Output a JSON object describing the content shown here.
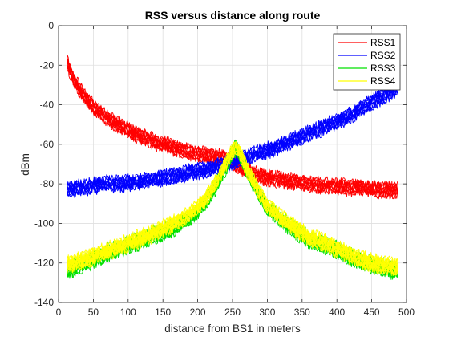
{
  "chart_data": {
    "type": "line",
    "title": "RSS versus distance along route",
    "xlabel": "distance from BS1 in meters",
    "ylabel": "dBm",
    "xlim": [
      0,
      500
    ],
    "ylim": [
      -140,
      0
    ],
    "xticks": [
      0,
      50,
      100,
      150,
      200,
      250,
      300,
      350,
      400,
      450,
      500
    ],
    "yticks": [
      0,
      -20,
      -40,
      -60,
      -80,
      -100,
      -120,
      -140
    ],
    "grid": true,
    "legend_position": "top-right",
    "series": [
      {
        "name": "RSS1",
        "color": "#ff0000",
        "x": [
          12,
          20,
          30,
          40,
          50,
          60,
          75,
          90,
          105,
          120,
          140,
          160,
          180,
          200,
          220,
          240,
          260,
          280,
          300,
          320,
          340,
          360,
          380,
          400,
          420,
          440,
          460,
          487
        ],
        "y": [
          -18,
          -26,
          -32,
          -37,
          -41,
          -44,
          -48,
          -51,
          -54,
          -56,
          -59,
          -61,
          -63,
          -65,
          -66,
          -67,
          -71,
          -75,
          -77,
          -78,
          -79,
          -80,
          -81,
          -81,
          -82,
          -82,
          -83,
          -83
        ]
      },
      {
        "name": "RSS2",
        "color": "#0000ff",
        "x": [
          12,
          30,
          50,
          70,
          90,
          110,
          130,
          150,
          170,
          190,
          210,
          230,
          250,
          270,
          290,
          310,
          330,
          350,
          370,
          390,
          410,
          430,
          450,
          470,
          487
        ],
        "y": [
          -83,
          -82,
          -81,
          -80,
          -80,
          -79,
          -78,
          -77,
          -76,
          -74,
          -73,
          -71,
          -69,
          -67,
          -64,
          -62,
          -59,
          -56,
          -53,
          -50,
          -47,
          -43,
          -39,
          -35,
          -32
        ]
      },
      {
        "name": "RSS3",
        "color": "#00e000",
        "x": [
          12,
          40,
          70,
          100,
          130,
          160,
          190,
          210,
          225,
          240,
          250,
          255,
          260,
          270,
          285,
          300,
          330,
          360,
          390,
          420,
          450,
          487
        ],
        "y": [
          -124,
          -120,
          -115,
          -111,
          -107,
          -103,
          -97,
          -90,
          -82,
          -72,
          -64,
          -62,
          -65,
          -73,
          -83,
          -92,
          -101,
          -108,
          -112,
          -117,
          -121,
          -124
        ]
      },
      {
        "name": "RSS4",
        "color": "#ffff00",
        "x": [
          12,
          40,
          70,
          100,
          130,
          160,
          190,
          210,
          225,
          240,
          250,
          255,
          260,
          270,
          285,
          300,
          330,
          360,
          390,
          420,
          450,
          487
        ],
        "y": [
          -121,
          -118,
          -114,
          -110,
          -106,
          -101,
          -95,
          -88,
          -80,
          -70,
          -63,
          -62,
          -64,
          -72,
          -82,
          -91,
          -100,
          -107,
          -111,
          -116,
          -120,
          -122
        ]
      }
    ]
  }
}
